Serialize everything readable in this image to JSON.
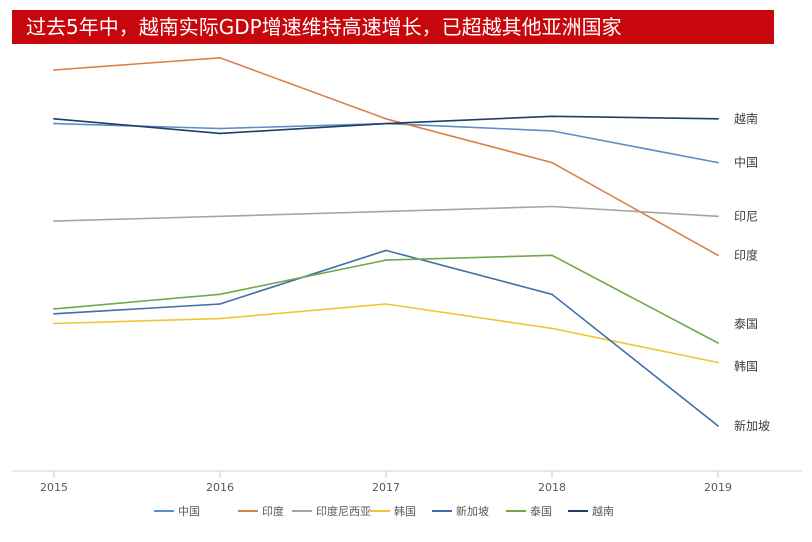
{
  "title": "过去5年中，越南实际GDP增速维持高速增长，已超越其他亚洲国家",
  "chart_data": {
    "type": "line",
    "x": [
      "2015",
      "2016",
      "2017",
      "2018",
      "2019"
    ],
    "ylim": [
      0,
      8
    ],
    "grid": false,
    "legend_position": "bottom",
    "series": [
      {
        "name": "中国",
        "label": "中国",
        "color": "#5b8fc6",
        "values": [
          6.9,
          6.8,
          6.9,
          6.75,
          6.1
        ]
      },
      {
        "name": "印度",
        "label": "印度",
        "color": "#d9804a",
        "values": [
          8.0,
          8.25,
          7.0,
          6.1,
          4.2
        ]
      },
      {
        "name": "印度尼西亚",
        "label": "印尼",
        "color": "#a5a5a5",
        "values": [
          4.9,
          5.0,
          5.1,
          5.2,
          5.0
        ]
      },
      {
        "name": "韩国",
        "label": "韩国",
        "color": "#f2c433",
        "values": [
          2.8,
          2.9,
          3.2,
          2.7,
          2.0
        ]
      },
      {
        "name": "新加坡",
        "label": "新加坡",
        "color": "#3f6ea8",
        "values": [
          3.0,
          3.2,
          4.3,
          3.4,
          0.7
        ]
      },
      {
        "name": "泰国",
        "label": "泰国",
        "color": "#71a84c",
        "values": [
          3.1,
          3.4,
          4.1,
          4.2,
          2.4
        ]
      },
      {
        "name": "越南",
        "label": "越南",
        "color": "#1f3d66",
        "values": [
          7.0,
          6.7,
          6.9,
          7.05,
          7.0
        ]
      }
    ]
  }
}
